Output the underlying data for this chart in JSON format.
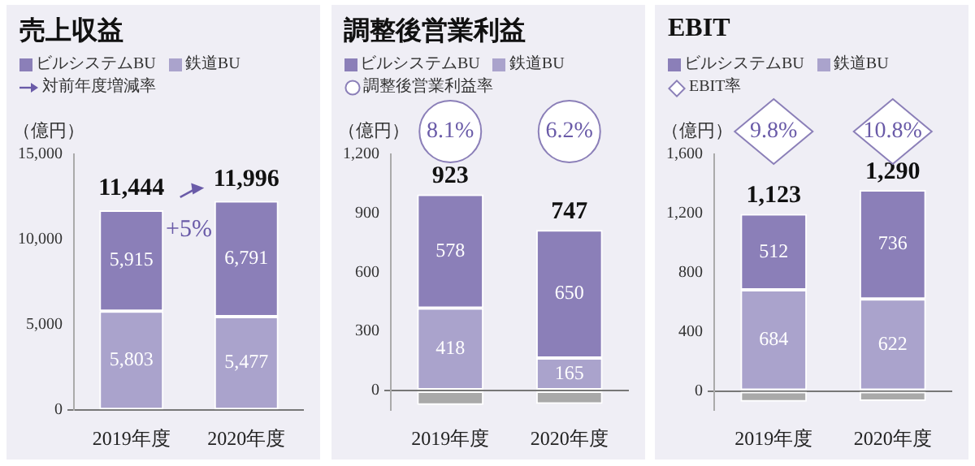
{
  "chart_data": [
    {
      "type": "bar",
      "title": "売上収益",
      "ylabel": "（億円）",
      "categories": [
        "2019年度",
        "2020年度"
      ],
      "stacked": true,
      "legend": "top left",
      "series": [
        {
          "name": "鉄道BU",
          "color": "#aaa3cc",
          "values": [
            5803,
            5477
          ],
          "value_labels": [
            "5,803",
            "5,477"
          ]
        },
        {
          "name": "ビルシステムBU",
          "color": "#8b7fb8",
          "values": [
            5915,
            6791
          ],
          "value_labels": [
            "5,915",
            "6,791"
          ]
        }
      ],
      "ylim": [
        0,
        15000
      ],
      "yticks": [
        {
          "value": 0,
          "label": "0"
        },
        {
          "value": 5000,
          "label": "5,000"
        },
        {
          "value": 10000,
          "label": "10,000"
        },
        {
          "value": 15000,
          "label": "15,000"
        }
      ],
      "annotations": [
        "対前年度増減率",
        "+5%",
        {
          "text": "11,444",
          "x": "2019年度",
          "y": 11444
        },
        {
          "text": "11,996",
          "x": "2020年度",
          "y": 11996
        }
      ]
    },
    {
      "type": "bar",
      "title": "調整後営業利益",
      "ylabel": "（億円）",
      "categories": [
        "2019年度",
        "2020年度"
      ],
      "stacked": true,
      "legend": "top left",
      "marker": "circle",
      "series": [
        {
          "name": "鉄道BU",
          "color": "#aaa3cc",
          "values": [
            418,
            165
          ],
          "value_labels": [
            "418",
            "165"
          ]
        },
        {
          "name": "ビルシステムBU",
          "color": "#8b7fb8",
          "values": [
            578,
            650
          ],
          "value_labels": [
            "578",
            "650"
          ]
        },
        {
          "color": "#a9a9a9",
          "values": [
            -73,
            -68
          ]
        }
      ],
      "totals": [
        "923",
        "747"
      ],
      "ylim": [
        -100,
        1200
      ],
      "yticks": [
        {
          "value": 0,
          "label": "0"
        },
        {
          "value": 300,
          "label": "300"
        },
        {
          "value": 600,
          "label": "600"
        },
        {
          "value": 900,
          "label": "900"
        },
        {
          "value": 1200,
          "label": "1,200"
        }
      ],
      "annotations": [
        "調整後営業利益率",
        "8.1%",
        "6.2%"
      ]
    },
    {
      "type": "bar",
      "title": "EBIT",
      "ylabel": "（億円）",
      "categories": [
        "2019年度",
        "2020年度"
      ],
      "stacked": true,
      "legend": "top left",
      "marker": "diamond",
      "series": [
        {
          "name": "鉄道BU",
          "color": "#aaa3cc",
          "values": [
            684,
            622
          ],
          "value_labels": [
            "684",
            "622"
          ]
        },
        {
          "name": "ビルシステムBU",
          "color": "#8b7fb8",
          "values": [
            512,
            736
          ],
          "value_labels": [
            "512",
            "736"
          ]
        },
        {
          "color": "#a9a9a9",
          "values": [
            -73,
            -68
          ]
        }
      ],
      "totals": [
        "1,123",
        "1,290"
      ],
      "ylim": [
        -130,
        1600
      ],
      "yticks": [
        {
          "value": 0,
          "label": "0"
        },
        {
          "value": 400,
          "label": "400"
        },
        {
          "value": 800,
          "label": "800"
        },
        {
          "value": 1200,
          "label": "1,200"
        },
        {
          "value": 1600,
          "label": "1,600"
        }
      ],
      "annotations": [
        "EBIT率",
        "9.8%",
        "10.8%"
      ]
    }
  ]
}
